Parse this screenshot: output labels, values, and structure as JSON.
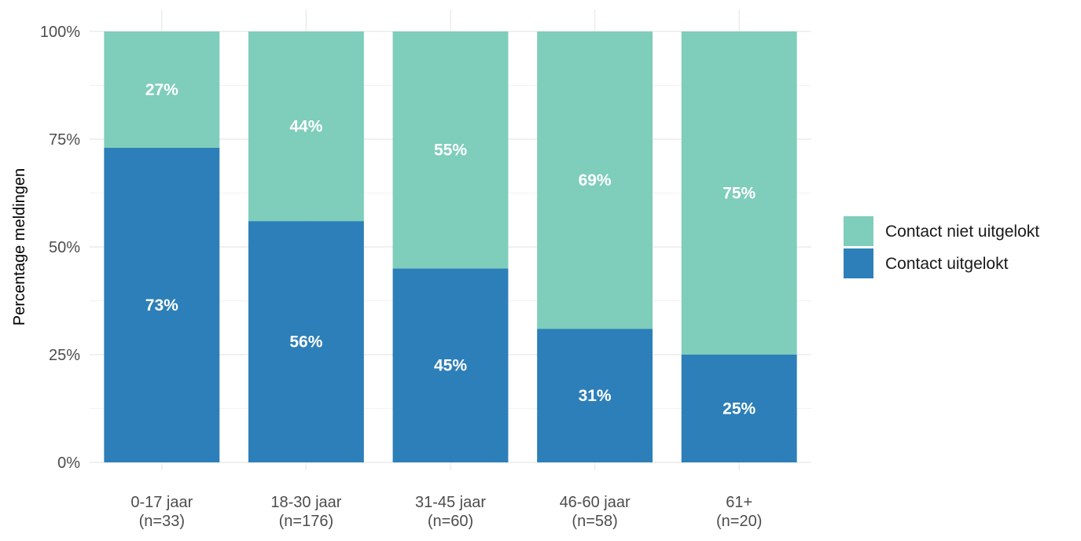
{
  "chart_data": {
    "type": "bar",
    "stacked": true,
    "percent": true,
    "title": "",
    "xlabel": "",
    "ylabel": "Percentage meldingen",
    "ylim": [
      0,
      100
    ],
    "y_ticks": [
      {
        "value": 0,
        "label": "0%"
      },
      {
        "value": 25,
        "label": "25%"
      },
      {
        "value": 50,
        "label": "50%"
      },
      {
        "value": 75,
        "label": "75%"
      },
      {
        "value": 100,
        "label": "100%"
      }
    ],
    "categories": [
      [
        "0-17 jaar",
        "(n=33)"
      ],
      [
        "18-30 jaar",
        "(n=176)"
      ],
      [
        "31-45 jaar",
        "(n=60)"
      ],
      [
        "46-60 jaar",
        "(n=58)"
      ],
      [
        "61+",
        "(n=20)"
      ]
    ],
    "series": [
      {
        "name": "Contact uitgelokt",
        "color": "#2c7fb8",
        "values": [
          73,
          56,
          45,
          31,
          25
        ]
      },
      {
        "name": "Contact niet uitgelokt",
        "color": "#7fcdbb",
        "values": [
          27,
          44,
          55,
          69,
          75
        ]
      }
    ],
    "legend": {
      "position": "right",
      "order": [
        "Contact niet uitgelokt",
        "Contact uitgelokt"
      ]
    },
    "grid": true,
    "value_label_suffix": "%"
  }
}
